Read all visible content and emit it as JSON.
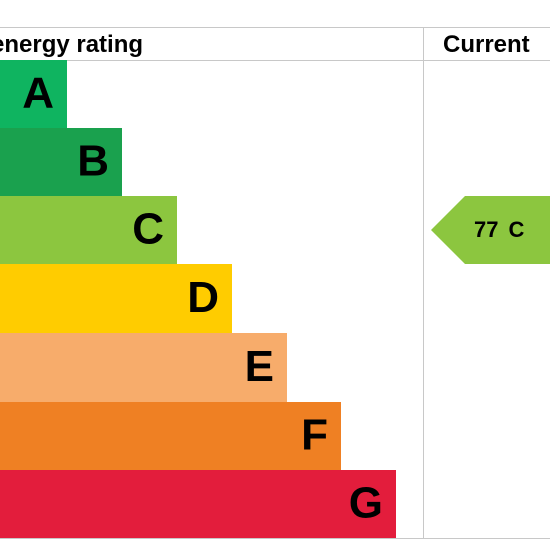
{
  "header": {
    "rating_title": "energy rating",
    "current_title": "Current"
  },
  "bands": [
    {
      "letter": "A",
      "color": "#0fb460"
    },
    {
      "letter": "B",
      "color": "#1aa14e"
    },
    {
      "letter": "C",
      "color": "#8cc63f"
    },
    {
      "letter": "D",
      "color": "#ffcc00"
    },
    {
      "letter": "E",
      "color": "#f7ac6b"
    },
    {
      "letter": "F",
      "color": "#ef8023"
    },
    {
      "letter": "G",
      "color": "#e31d3c"
    }
  ],
  "current": {
    "value": 77,
    "band": "C",
    "color": "#8cc63f"
  }
}
